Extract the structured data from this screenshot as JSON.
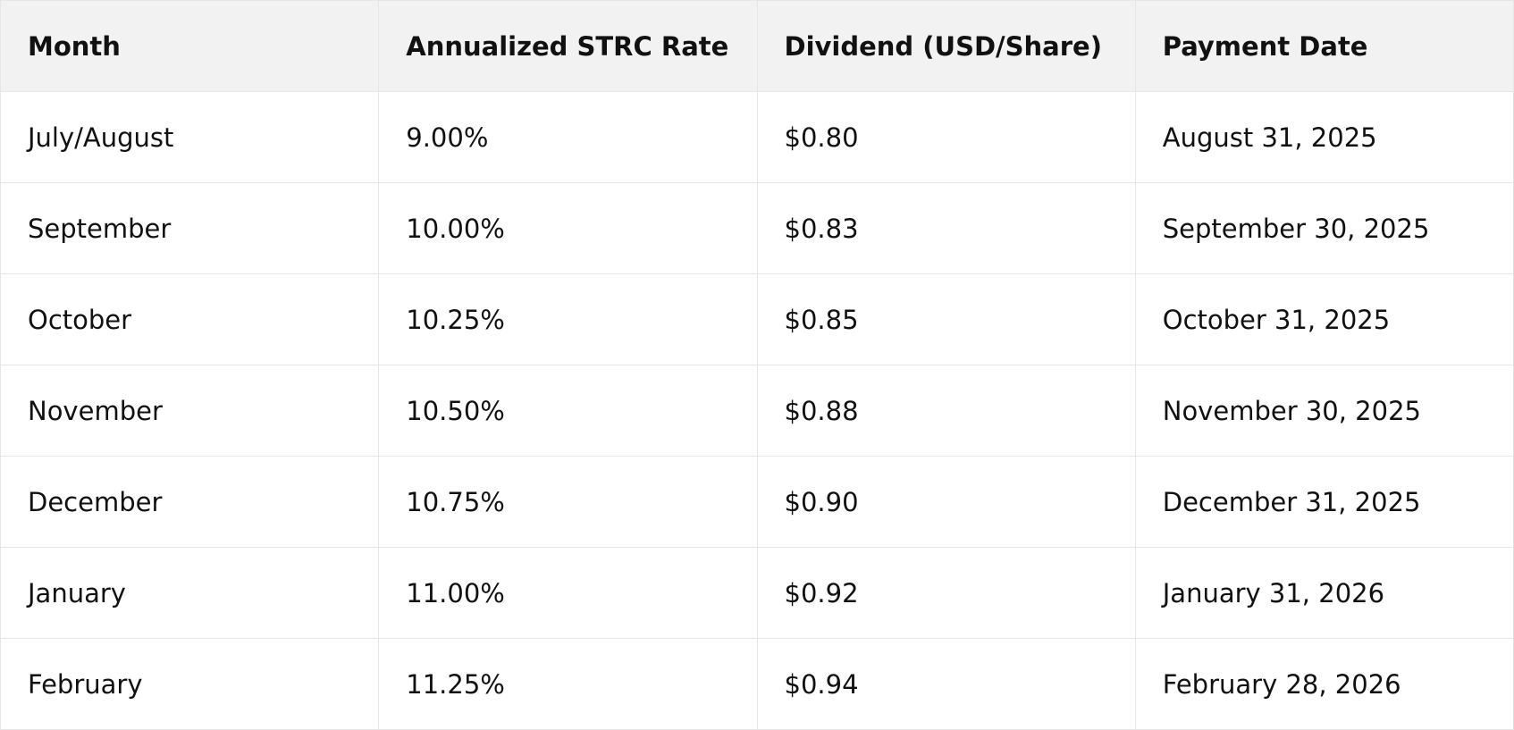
{
  "table": {
    "header": [
      "Month",
      "Annualized STRC Rate",
      "Dividend (USD/Share)",
      "Payment Date"
    ],
    "rows": [
      [
        "July/August",
        "9.00%",
        "$0.80",
        "August 31, 2025"
      ],
      [
        "September",
        "10.00%",
        "$0.83",
        "September 30, 2025"
      ],
      [
        "October",
        "10.25%",
        "$0.85",
        "October 31, 2025"
      ],
      [
        "November",
        "10.50%",
        "$0.88",
        "November 30, 2025"
      ],
      [
        "December",
        "10.75%",
        "$0.90",
        "December 31, 2025"
      ],
      [
        "January",
        "11.00%",
        "$0.92",
        "January 31, 2026"
      ],
      [
        "February",
        "11.25%",
        "$0.94",
        "February 28, 2026"
      ]
    ]
  }
}
